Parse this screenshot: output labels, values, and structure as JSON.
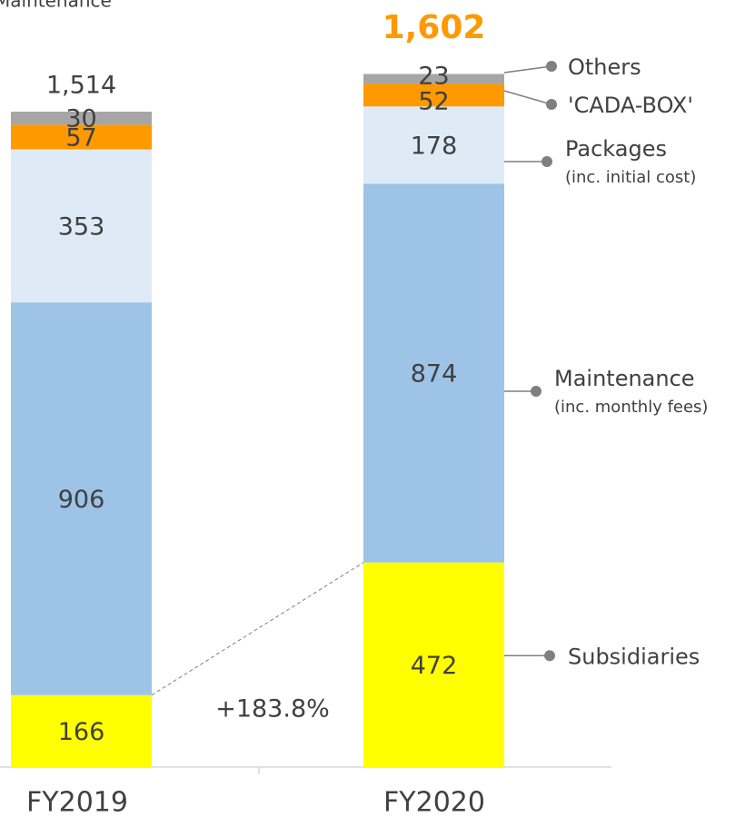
{
  "chart_data": {
    "type": "stacked_bar",
    "title": "Maintenance",
    "categories": [
      "FY2019",
      "FY2020"
    ],
    "series": [
      {
        "name": "Subsidiaries",
        "color": "#ffff00",
        "values": [
          166,
          472
        ]
      },
      {
        "name": "Maintenance",
        "sublabel": "(inc. monthly fees)",
        "color": "#9dc3e6",
        "values": [
          906,
          874
        ]
      },
      {
        "name": "Packages",
        "sublabel": "(inc. initial cost)",
        "color": "#deebf7",
        "values": [
          353,
          178
        ]
      },
      {
        "name": "'CADA-BOX'",
        "color": "#ff9900",
        "values": [
          57,
          52
        ]
      },
      {
        "name": "Others",
        "color": "#a6a6a6",
        "values": [
          30,
          23
        ]
      }
    ],
    "totals": [
      1514,
      1602
    ],
    "totals_value_labels": [
      "1,514",
      "1,602"
    ],
    "annotation": "+183.8%"
  }
}
